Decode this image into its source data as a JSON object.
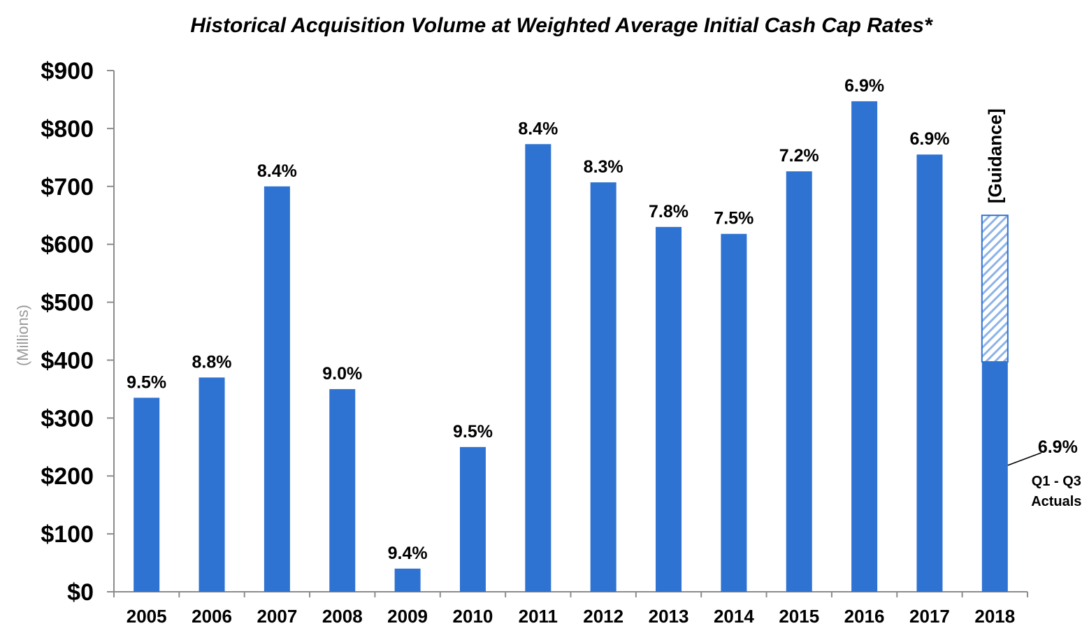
{
  "chart_data": {
    "type": "bar",
    "title": "Historical Acquisition Volume at Weighted Average Initial Cash Cap Rates*",
    "ylabel": "(Millions)",
    "xlabel": "",
    "ylim": [
      0,
      900
    ],
    "yticks": [
      0,
      100,
      200,
      300,
      400,
      500,
      600,
      700,
      800,
      900
    ],
    "ytick_labels": [
      "$0",
      "$100",
      "$200",
      "$300",
      "$400",
      "$500",
      "$600",
      "$700",
      "$800",
      "$900"
    ],
    "grid": false,
    "legend": "none",
    "categories": [
      "2005",
      "2006",
      "2007",
      "2008",
      "2009",
      "2010",
      "2011",
      "2012",
      "2013",
      "2014",
      "2015",
      "2016",
      "2017",
      "2018"
    ],
    "series": [
      {
        "values": [
          335,
          370,
          700,
          350,
          40,
          250,
          773,
          707,
          630,
          618,
          726,
          847,
          755,
          397
        ]
      },
      {
        "values": [
          0,
          0,
          0,
          0,
          0,
          0,
          0,
          0,
          0,
          0,
          0,
          0,
          0,
          253
        ]
      }
    ],
    "data_labels": [
      "9.5%",
      "8.8%",
      "8.4%",
      "9.0%",
      "9.4%",
      "9.5%",
      "8.4%",
      "8.3%",
      "7.8%",
      "7.5%",
      "7.2%",
      "6.9%",
      "6.9%",
      ""
    ],
    "annotations": {
      "guidance": "[Guidance]",
      "actuals_rate": "6.9%",
      "actuals_line1": "Q1 - Q3",
      "actuals_line2": "Actuals"
    },
    "colors": {
      "bar": "#2E72D2",
      "guidance_hatch": "#8DB3E8",
      "axis": "#8c8c8c"
    }
  }
}
